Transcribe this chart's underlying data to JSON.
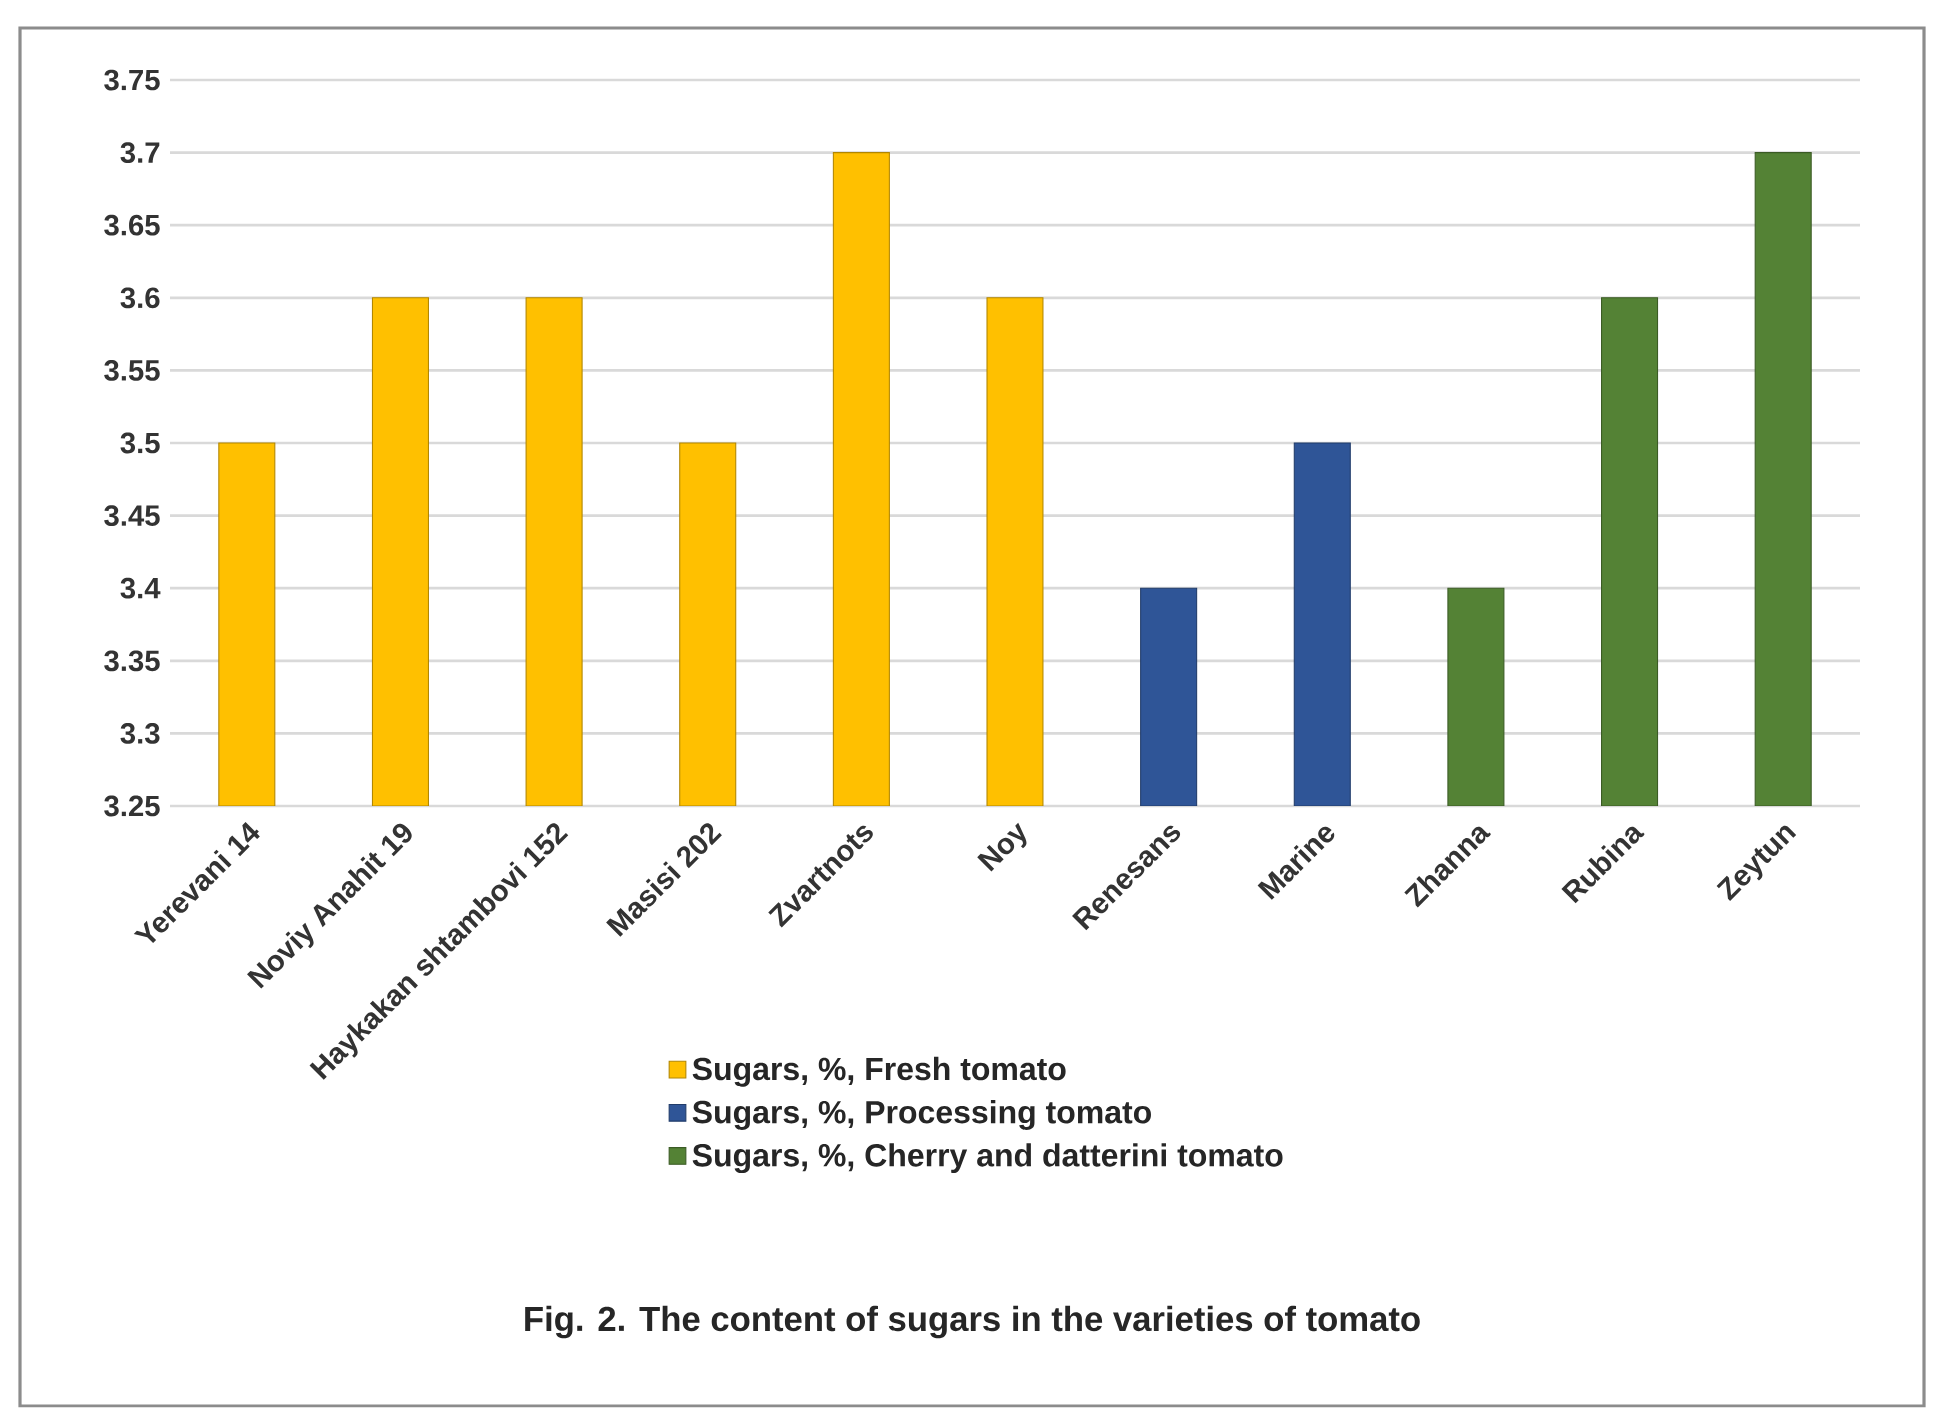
{
  "chart_data": {
    "type": "bar",
    "title": "Fig. 2. The content of  sugars in the varieties of tomato",
    "categories": [
      "Yerevani 14",
      "Noviy Anahit 19",
      "Haykakan shtambovi 152",
      "Masisi 202",
      "Zvartnots",
      "Noy",
      "Renesans",
      "Marine",
      "Zhanna",
      "Rubina",
      "Zeytun"
    ],
    "series": [
      {
        "name": "Sugars, %, Fresh tomato",
        "color": "#ffc000",
        "values": [
          3.5,
          3.6,
          3.6,
          3.5,
          3.7,
          3.6,
          null,
          null,
          null,
          null,
          null
        ]
      },
      {
        "name": "Sugars, %, Processing tomato",
        "color": "#2f5597",
        "values": [
          null,
          null,
          null,
          null,
          null,
          null,
          3.4,
          3.5,
          null,
          null,
          null
        ]
      },
      {
        "name": "Sugars, %, Cherry and datterini tomato",
        "color": "#548235",
        "values": [
          null,
          null,
          null,
          null,
          null,
          null,
          null,
          null,
          3.4,
          3.6,
          3.7
        ]
      }
    ],
    "ylim": [
      3.25,
      3.75
    ],
    "yticks": [
      3.25,
      3.3,
      3.35,
      3.4,
      3.45,
      3.5,
      3.55,
      3.6,
      3.65,
      3.7,
      3.75
    ],
    "grid": "y",
    "legend": "bottom"
  }
}
